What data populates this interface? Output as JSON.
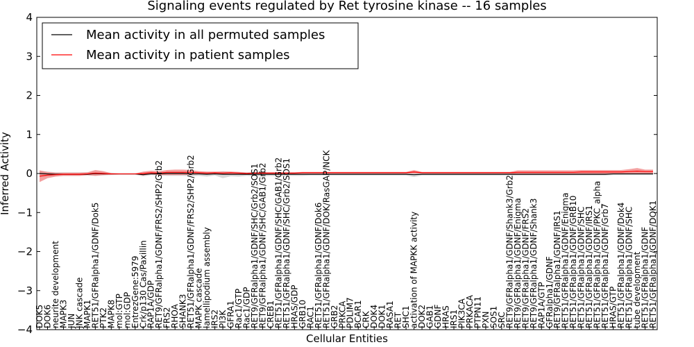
{
  "chart_data": {
    "type": "line",
    "title": "Signaling events regulated by Ret tyrosine kinase -- 16 samples",
    "xlabel": "Cellular Entities",
    "ylabel": "Inferred Activity",
    "ylim": [
      -4,
      4
    ],
    "yticks": [
      -4,
      -3,
      -2,
      -1,
      0,
      1,
      2,
      3,
      4
    ],
    "grid": false,
    "legend_position": "top-left",
    "categories": [
      "DOK5",
      "DOK6",
      "neurite development",
      "MAPK3",
      "JUN",
      "JNK cascade",
      "MAPK1",
      "RET51/GFRalpha1/GDNF/Dok5",
      "PTK2",
      "MAPK8",
      "mol:GTP",
      "mol:GDP",
      "EntrezGene:5979",
      "Crk/p130 Cas/Paxillin",
      "RAP1A/GDP",
      "RET9/GFRalpha1/GDNF/FRS2/SHP2/Grb2",
      "FRS2",
      "RHOA",
      "SHANK3",
      "RET51/GFRalpha1/GDNF/FRS2/SHP2/Grb2",
      "MAPK cascade",
      "lamellipodium assembly",
      "IRS2",
      "PI3K",
      "GFRA1",
      "Rac1/GTP",
      "Rac1/GDP",
      "RET9/GFRalpha1/GDNF/SHC/Grb2/SOS1",
      "RET9/GFRalpha1/GDNF/SHC/GAB1/Grb2",
      "CREB1",
      "RET51/GFRalpha1/GDNF/SHC/GAB1/Grb2",
      "RET51/GFRalpha1/GDNF/SHC/Grb2/SOS1",
      "HRAS/GDP",
      "GRB10",
      "RAC1",
      "RET51/GFRalpha1/GDNF/Dok6",
      "RET51/GFRalpha1/GDNF/DOK/RasGAP/NCK",
      "GRB2",
      "PRKCA",
      "PDLIM7",
      "BCAR1",
      "CRK",
      "DOK4",
      "DOK1",
      "RASA1",
      "RET",
      "SHC1",
      "activation of MAPKK activity",
      "DOK2",
      "GAB1",
      "GDNF",
      "HRAS",
      "IRS1",
      "PIK3CA",
      "PRKACA",
      "PTPN11",
      "PXN",
      "SOS1",
      "SRC",
      "RET9/GFRalpha1/GDNF/Shank3/Grb2",
      "RET9/GFRalpha1/GDNF/Enigma",
      "RET9/GFRalpha1/GDNF/FRS2",
      "RET9/GFRalpha1/GDNF/Shank3",
      "RAP1A/GTP",
      "GFRalpha1/GDNF",
      "RET9/GFRalpha1/GDNF/IRS1",
      "RET51/GFRalpha1/GDNF/Enigma",
      "RET51/GFRalpha1/GDNF/GRB10",
      "RET51/GFRalpha1/GDNF/SHC",
      "RET51/GFRalpha1/GDNF/IRS1",
      "RET51/GFRalpha1/GDNF/PKC_alpha",
      "RET51/GFRalpha1/GDNF/Grb7",
      "HRAS/GTP",
      "RET51/GFRalpha1/GDNF/Dok4",
      "RET51/GFRalpha1/GDNF/SHC",
      "tube development",
      "RET51/GFRalpha1/GDNF",
      "RET51/GFRalpha1/GDNF/DOK1"
    ],
    "series": [
      {
        "name": "Mean activity in all permuted samples",
        "color": "#000000",
        "values": [
          0.0,
          -0.01,
          -0.02,
          -0.02,
          -0.02,
          -0.02,
          -0.02,
          0.0,
          -0.01,
          -0.01,
          -0.01,
          -0.01,
          -0.01,
          -0.03,
          -0.01,
          -0.01,
          0.0,
          0.0,
          0.0,
          -0.01,
          -0.01,
          -0.02,
          -0.01,
          -0.02,
          -0.02,
          -0.02,
          -0.02,
          -0.02,
          -0.02,
          -0.02,
          -0.02,
          -0.02,
          -0.02,
          -0.02,
          -0.02,
          -0.02,
          -0.02,
          -0.02,
          -0.02,
          -0.02,
          -0.02,
          -0.02,
          -0.02,
          -0.02,
          -0.02,
          -0.02,
          -0.02,
          -0.03,
          -0.02,
          -0.02,
          -0.02,
          -0.02,
          -0.02,
          -0.02,
          -0.02,
          -0.02,
          -0.02,
          -0.02,
          -0.02,
          -0.02,
          -0.02,
          -0.02,
          -0.02,
          -0.02,
          -0.02,
          -0.02,
          -0.02,
          -0.02,
          -0.02,
          -0.02,
          -0.02,
          -0.02,
          -0.01,
          -0.01,
          -0.01,
          -0.01,
          -0.01,
          -0.01
        ],
        "band_low": [
          -0.08,
          -0.08,
          -0.06,
          -0.06,
          -0.06,
          -0.06,
          -0.05,
          -0.06,
          -0.05,
          -0.04,
          -0.03,
          -0.03,
          -0.03,
          -0.07,
          -0.04,
          -0.05,
          -0.06,
          -0.06,
          -0.06,
          -0.07,
          -0.06,
          -0.08,
          -0.05,
          -0.12,
          -0.07,
          -0.08,
          -0.06,
          -0.07,
          -0.07,
          -0.06,
          -0.07,
          -0.06,
          -0.06,
          -0.06,
          -0.05,
          -0.05,
          -0.05,
          -0.05,
          -0.05,
          -0.05,
          -0.05,
          -0.05,
          -0.05,
          -0.05,
          -0.05,
          -0.05,
          -0.05,
          -0.09,
          -0.05,
          -0.05,
          -0.05,
          -0.05,
          -0.05,
          -0.05,
          -0.05,
          -0.05,
          -0.05,
          -0.05,
          -0.05,
          -0.05,
          -0.05,
          -0.05,
          -0.05,
          -0.05,
          -0.05,
          -0.05,
          -0.05,
          -0.05,
          -0.05,
          -0.05,
          -0.05,
          -0.05,
          -0.04,
          -0.04,
          -0.04,
          -0.04,
          -0.04,
          -0.04
        ],
        "band_high": [
          0.06,
          0.05,
          0.03,
          0.03,
          0.03,
          0.03,
          0.03,
          0.05,
          0.04,
          0.02,
          0.01,
          0.01,
          0.01,
          0.02,
          0.03,
          0.04,
          0.05,
          0.05,
          0.05,
          0.05,
          0.04,
          0.04,
          0.03,
          0.06,
          0.04,
          0.04,
          0.03,
          0.04,
          0.04,
          0.03,
          0.04,
          0.03,
          0.03,
          0.03,
          0.02,
          0.02,
          0.02,
          0.02,
          0.02,
          0.02,
          0.02,
          0.02,
          0.02,
          0.02,
          0.02,
          0.02,
          0.02,
          0.04,
          0.02,
          0.02,
          0.02,
          0.02,
          0.02,
          0.02,
          0.02,
          0.02,
          0.02,
          0.02,
          0.02,
          0.02,
          0.02,
          0.02,
          0.02,
          0.02,
          0.02,
          0.02,
          0.02,
          0.02,
          0.02,
          0.02,
          0.02,
          0.02,
          0.03,
          0.03,
          0.03,
          0.03,
          0.03,
          0.03
        ]
      },
      {
        "name": "Mean activity in patient samples",
        "color": "#ff0000",
        "values": [
          -0.07,
          -0.04,
          -0.03,
          -0.02,
          -0.02,
          -0.02,
          -0.01,
          0.01,
          0.0,
          -0.01,
          -0.01,
          -0.01,
          -0.01,
          0.0,
          0.02,
          0.01,
          0.03,
          0.03,
          0.03,
          0.03,
          0.02,
          0.01,
          0.02,
          0.01,
          0.02,
          0.01,
          0.0,
          0.01,
          0.01,
          0.01,
          0.01,
          0.01,
          0.01,
          0.02,
          0.02,
          0.02,
          0.02,
          0.02,
          0.02,
          0.02,
          0.02,
          0.02,
          0.02,
          0.02,
          0.02,
          0.02,
          0.02,
          0.04,
          0.02,
          0.02,
          0.02,
          0.02,
          0.02,
          0.02,
          0.02,
          0.02,
          0.02,
          0.02,
          0.02,
          0.02,
          0.03,
          0.03,
          0.03,
          0.03,
          0.03,
          0.03,
          0.03,
          0.03,
          0.04,
          0.04,
          0.04,
          0.04,
          0.04,
          0.04,
          0.05,
          0.06,
          0.05,
          0.05
        ],
        "band_low": [
          -0.22,
          -0.12,
          -0.08,
          -0.06,
          -0.06,
          -0.06,
          -0.04,
          -0.06,
          -0.04,
          -0.03,
          -0.02,
          -0.02,
          -0.02,
          -0.05,
          -0.02,
          -0.04,
          -0.04,
          -0.04,
          -0.04,
          -0.03,
          -0.02,
          -0.02,
          -0.01,
          -0.02,
          -0.01,
          -0.01,
          -0.02,
          -0.01,
          -0.01,
          -0.01,
          -0.01,
          -0.01,
          -0.01,
          0.0,
          0.0,
          0.0,
          0.0,
          0.0,
          0.0,
          0.0,
          0.0,
          0.0,
          0.0,
          0.0,
          0.0,
          0.0,
          0.0,
          0.0,
          0.0,
          0.0,
          0.0,
          0.0,
          0.0,
          0.0,
          0.0,
          0.0,
          0.0,
          0.0,
          0.0,
          0.0,
          -0.02,
          -0.02,
          -0.02,
          -0.02,
          -0.02,
          -0.02,
          -0.02,
          -0.02,
          -0.01,
          -0.01,
          -0.01,
          -0.01,
          -0.01,
          -0.01,
          0.0,
          0.0,
          0.0,
          0.0
        ],
        "band_high": [
          0.08,
          0.04,
          0.02,
          0.02,
          0.02,
          0.02,
          0.03,
          0.09,
          0.06,
          0.01,
          0.0,
          0.0,
          0.0,
          0.05,
          0.07,
          0.06,
          0.09,
          0.1,
          0.1,
          0.09,
          0.06,
          0.05,
          0.05,
          0.05,
          0.05,
          0.04,
          0.02,
          0.03,
          0.03,
          0.03,
          0.03,
          0.03,
          0.03,
          0.04,
          0.04,
          0.04,
          0.04,
          0.04,
          0.04,
          0.04,
          0.04,
          0.04,
          0.04,
          0.04,
          0.04,
          0.04,
          0.04,
          0.09,
          0.04,
          0.04,
          0.04,
          0.04,
          0.04,
          0.04,
          0.04,
          0.04,
          0.04,
          0.04,
          0.04,
          0.04,
          0.08,
          0.08,
          0.08,
          0.08,
          0.08,
          0.08,
          0.08,
          0.08,
          0.09,
          0.09,
          0.09,
          0.09,
          0.09,
          0.09,
          0.11,
          0.14,
          0.1,
          0.1
        ]
      }
    ],
    "band_colors": {
      "permuted": "#c8c8c8",
      "patient": "#f08080"
    }
  }
}
